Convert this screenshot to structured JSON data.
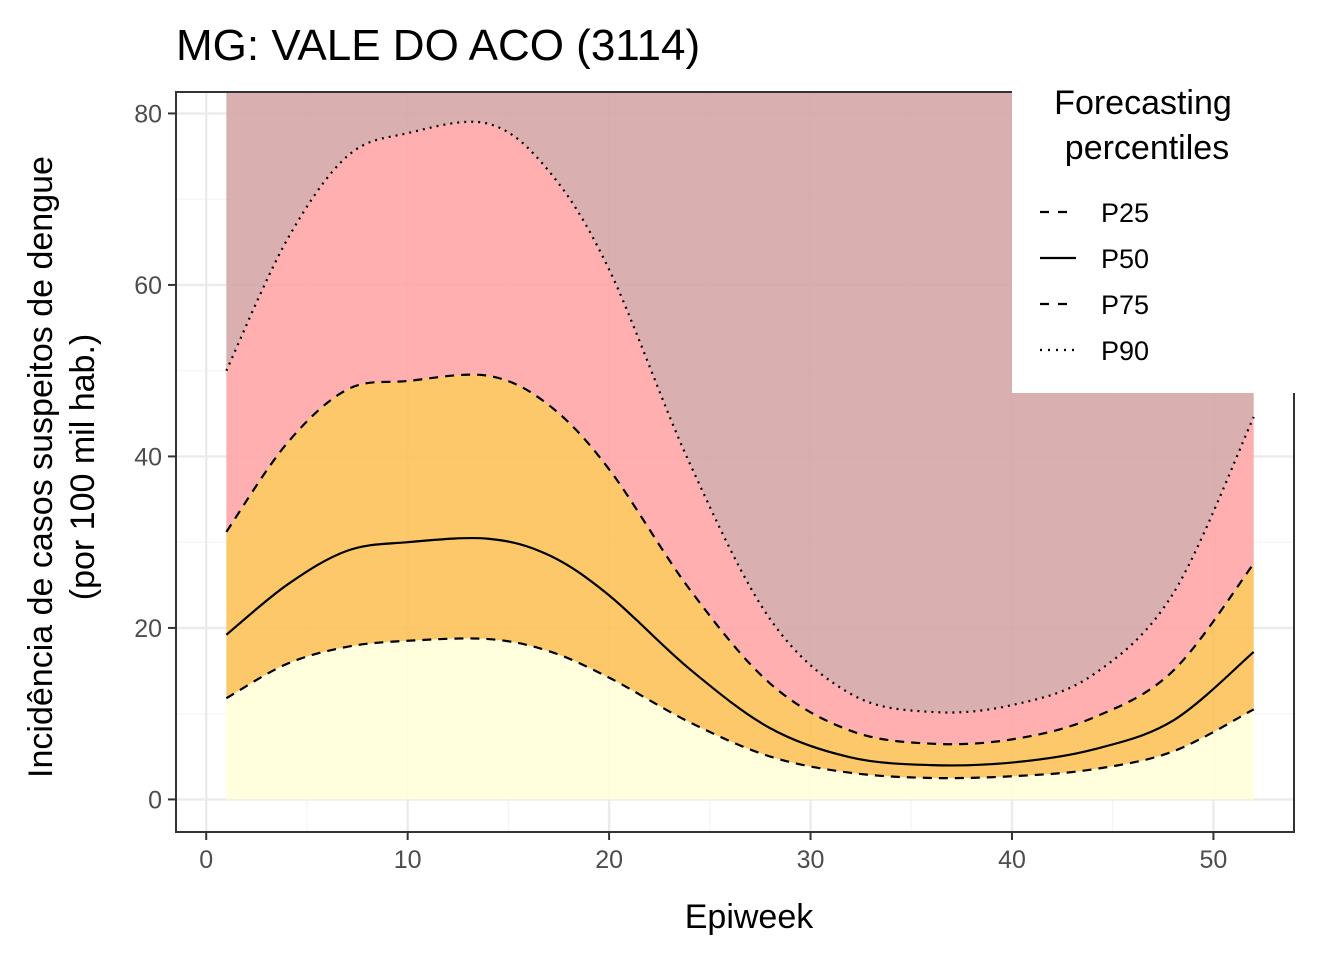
{
  "chart_data": {
    "type": "area",
    "title": "MG: VALE DO ACO (3114)",
    "xlabel": "Epiweek",
    "ylabel": [
      "Incidência de casos suspeitos de dengue",
      "(por 100 mil hab.)"
    ],
    "xlim": [
      -1.5,
      54
    ],
    "ylim": [
      -3.8,
      82.5
    ],
    "x_ticks": [
      0,
      10,
      20,
      30,
      40,
      50
    ],
    "y_ticks": [
      0,
      20,
      40,
      60,
      80
    ],
    "x": [
      1,
      4,
      7,
      10,
      14,
      17,
      20,
      24,
      28,
      32,
      36,
      40,
      44,
      48,
      52
    ],
    "bands": [
      {
        "name": "0-P25",
        "lower": "zero",
        "upper": "P25",
        "color": "#FFFFD9"
      },
      {
        "name": "P25-P75",
        "lower": "P25",
        "upper": "P75",
        "color": "#FCC25A"
      },
      {
        "name": "P75-P90",
        "lower": "P75",
        "upper": "P90",
        "color": "#FFA6A6"
      },
      {
        "name": "above P90",
        "lower": "P90",
        "upper": "top",
        "color": "#D6A6A7"
      }
    ],
    "series": [
      {
        "name": "P25",
        "linetype": "dashed",
        "values": [
          11.8,
          15.8,
          17.8,
          18.5,
          18.7,
          17.3,
          14.2,
          9.0,
          5.0,
          3.1,
          2.5,
          2.7,
          3.5,
          5.6,
          10.5
        ]
      },
      {
        "name": "P50",
        "linetype": "solid",
        "values": [
          19.2,
          25.0,
          29.0,
          30.0,
          30.4,
          28.5,
          23.8,
          15.2,
          8.3,
          4.9,
          4.0,
          4.3,
          5.8,
          9.2,
          17.2
        ]
      },
      {
        "name": "P75",
        "linetype": "dashed",
        "values": [
          31.2,
          41.5,
          47.8,
          48.8,
          49.4,
          46.0,
          38.5,
          24.5,
          13.5,
          8.0,
          6.5,
          7.0,
          9.5,
          15.0,
          27.5
        ]
      },
      {
        "name": "P90",
        "linetype": "dotted",
        "values": [
          50.0,
          65.2,
          75.0,
          77.7,
          78.8,
          73.3,
          61.8,
          39.2,
          21.0,
          12.3,
          10.2,
          11.0,
          14.5,
          24.0,
          44.6
        ]
      }
    ],
    "legend": {
      "title": [
        "Forecasting",
        "percentiles"
      ],
      "position": "top-right",
      "entries": [
        {
          "label": "P25",
          "linetype": "dashed"
        },
        {
          "label": "P50",
          "linetype": "solid"
        },
        {
          "label": "P75",
          "linetype": "dashed"
        },
        {
          "label": "P90",
          "linetype": "dotted"
        }
      ]
    },
    "grid": true,
    "colors": {
      "panel_background": "#FFFFFF",
      "grid_major": "#EBEBEB",
      "grid_minor": "#F4F4F4",
      "panel_border": "#333333",
      "line": "#000000"
    }
  }
}
